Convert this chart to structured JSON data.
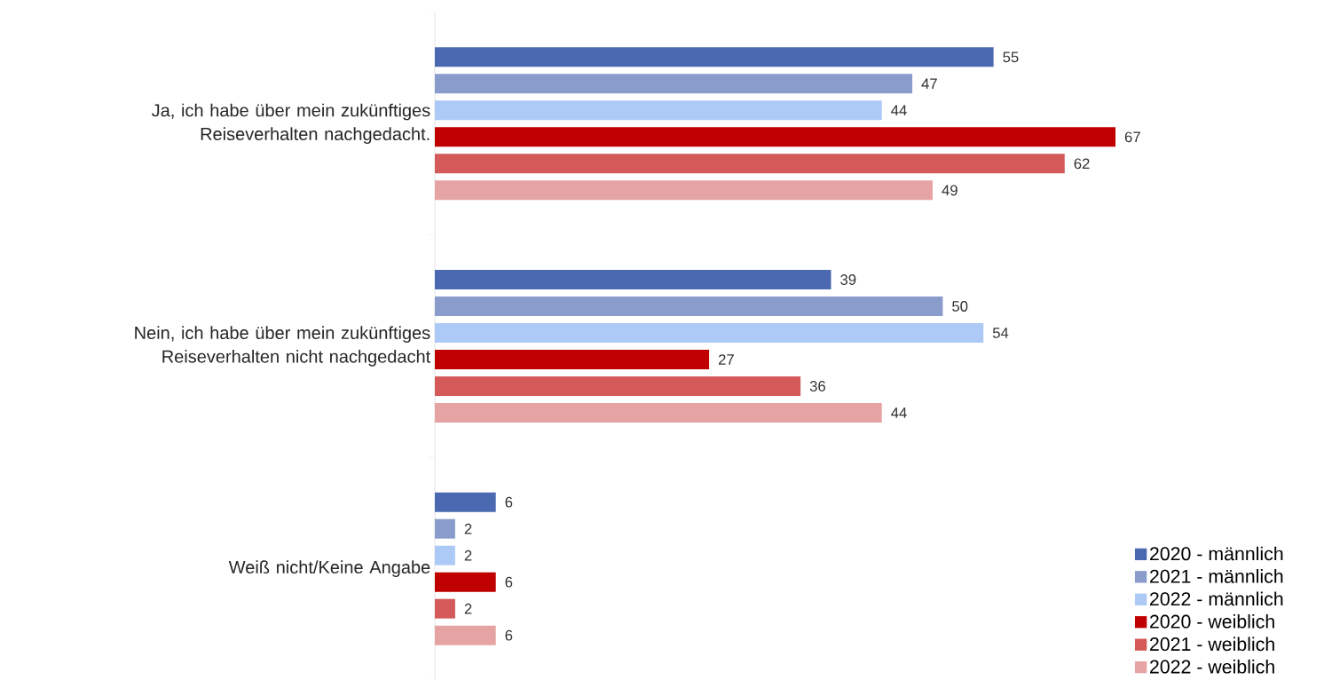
{
  "chart_data": {
    "type": "bar",
    "orientation": "horizontal",
    "categories": [
      "Ja, ich habe über mein zukünftiges Reiseverhalten nachgedacht.",
      "Nein, ich habe über mein zukünftiges Reiseverhalten nicht nachgedacht",
      "Weiß nicht/Keine Angabe"
    ],
    "series": [
      {
        "name": "2020 - männlich",
        "color": "#4a69b0",
        "values": [
          55,
          39,
          6
        ]
      },
      {
        "name": "2021 - männlich",
        "color": "#8a9ccc",
        "values": [
          47,
          50,
          2
        ]
      },
      {
        "name": "2022 - männlich",
        "color": "#adcaf6",
        "values": [
          44,
          54,
          2
        ]
      },
      {
        "name": "2020 - weiblich",
        "color": "#c00000",
        "values": [
          67,
          27,
          6
        ]
      },
      {
        "name": "2021 - weiblich",
        "color": "#d45959",
        "values": [
          62,
          36,
          2
        ]
      },
      {
        "name": "2022 - weiblich",
        "color": "#e6a3a3",
        "values": [
          49,
          44,
          6
        ]
      }
    ],
    "data_labels": true,
    "legend": "bottom right"
  }
}
